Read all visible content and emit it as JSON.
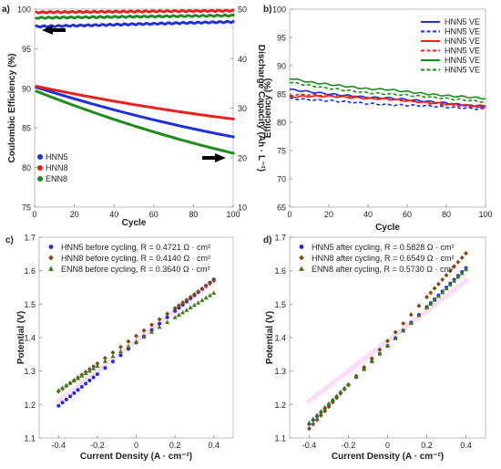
{
  "chart_data": [
    {
      "panel": "a)",
      "type": "scatter",
      "xlabel": "Cycle",
      "ylabel": "Coulombic Efficiency (%)",
      "y2label": "Discharge Capacity (Ah · L⁻¹)",
      "xlim": [
        0,
        100
      ],
      "ylim": [
        75,
        100
      ],
      "y2lim": [
        10,
        50
      ],
      "xticks": [
        "0",
        "20",
        "40",
        "60",
        "80",
        "100"
      ],
      "yticks": [
        "75",
        "80",
        "85",
        "90",
        "95",
        "100"
      ],
      "y2ticks": [
        "10",
        "20",
        "30",
        "40",
        "50"
      ],
      "legend_position": "lower-left",
      "legend": [
        "HNN5",
        "HNN8",
        "ENN8"
      ],
      "colors": [
        "#1f2fd0",
        "#e82020",
        "#1e8a1e"
      ],
      "series": [
        {
          "name": "HNN5",
          "axis": "left",
          "x_start": 1,
          "x_end": 100,
          "y_start": 97.8,
          "y_end": 98.4
        },
        {
          "name": "HNN8",
          "axis": "left",
          "x_start": 1,
          "x_end": 100,
          "y_start": 99.6,
          "y_end": 99.8
        },
        {
          "name": "ENN8",
          "axis": "left",
          "x_start": 1,
          "x_end": 100,
          "y_start": 98.9,
          "y_end": 99.2
        },
        {
          "name": "HNN5",
          "axis": "right",
          "x_start": 1,
          "x_end": 100,
          "y_start": 34.2,
          "y_end": 24.2
        },
        {
          "name": "HNN8",
          "axis": "right",
          "x_start": 1,
          "x_end": 100,
          "y_start": 34.4,
          "y_end": 27.8
        },
        {
          "name": "ENN8",
          "axis": "right",
          "x_start": 1,
          "x_end": 100,
          "y_start": 33.4,
          "y_end": 20.9
        }
      ],
      "arrows": [
        "left-axis",
        "right-axis"
      ]
    },
    {
      "panel": "b)",
      "type": "line",
      "xlabel": "Cycle",
      "ylabel": "Efficiency (%)",
      "xlim": [
        0,
        100
      ],
      "ylim": [
        65,
        100
      ],
      "xticks": [
        "0",
        "20",
        "40",
        "60",
        "80",
        "100"
      ],
      "yticks": [
        "65",
        "70",
        "75",
        "80",
        "85",
        "90",
        "95",
        "100"
      ],
      "legend_position": "top-right",
      "legend": [
        "HNN5 VE",
        "HNN5 VE",
        "HNN5 VE",
        "HNN5 VE",
        "HNN5 VE",
        "HNN5 VE"
      ],
      "series": [
        {
          "name": "HNN5 VE",
          "color": "#1f2fd0",
          "dash": false,
          "x": [
            0,
            10,
            20,
            30,
            40,
            50,
            60,
            70,
            80,
            90,
            100
          ],
          "y": [
            85.8,
            85.4,
            85.0,
            84.7,
            84.4,
            84.3,
            84.0,
            83.7,
            83.4,
            83.0,
            82.7
          ]
        },
        {
          "name": "HNN5 VE",
          "color": "#1f2fd0",
          "dash": true,
          "x": [
            0,
            10,
            20,
            30,
            40,
            50,
            60,
            70,
            80,
            90,
            100
          ],
          "y": [
            84.2,
            84.0,
            83.8,
            83.6,
            83.3,
            83.1,
            83.0,
            82.9,
            82.7,
            82.5,
            82.3
          ]
        },
        {
          "name": "HNN5 VE",
          "color": "#e82020",
          "dash": false,
          "x": [
            0,
            10,
            20,
            30,
            40,
            50,
            60,
            70,
            80,
            90,
            100
          ],
          "y": [
            84.5,
            84.6,
            84.6,
            84.4,
            84.2,
            84.1,
            83.8,
            83.5,
            83.3,
            83.0,
            82.9
          ]
        },
        {
          "name": "HNN5 VE",
          "color": "#e82020",
          "dash": true,
          "x": [
            0,
            10,
            20,
            30,
            40,
            50,
            60,
            70,
            80,
            90,
            100
          ],
          "y": [
            84.8,
            84.9,
            84.8,
            84.6,
            84.3,
            84.1,
            83.8,
            83.4,
            83.1,
            82.9,
            82.6
          ]
        },
        {
          "name": "HNN5 VE",
          "color": "#1e8a1e",
          "dash": false,
          "x": [
            0,
            10,
            20,
            30,
            40,
            50,
            60,
            70,
            80,
            90,
            100
          ],
          "y": [
            87.8,
            87.1,
            86.7,
            86.3,
            85.9,
            85.8,
            85.4,
            85.0,
            84.7,
            84.5,
            84.2
          ]
        },
        {
          "name": "HNN5 VE",
          "color": "#1e8a1e",
          "dash": true,
          "x": [
            0,
            10,
            20,
            30,
            40,
            50,
            60,
            70,
            80,
            90,
            100
          ],
          "y": [
            87.1,
            86.5,
            86.0,
            85.6,
            85.2,
            85.0,
            84.8,
            84.5,
            84.2,
            83.9,
            83.6
          ]
        }
      ]
    },
    {
      "panel": "c)",
      "type": "scatter",
      "xlabel": "Current Density (A · cm⁻²)",
      "ylabel": "Potential (V)",
      "xlim": [
        -0.5,
        0.5
      ],
      "ylim": [
        1.1,
        1.7
      ],
      "xticks": [
        "-0.4",
        "-0.2",
        "0",
        "0.2",
        "0.4"
      ],
      "yticks": [
        "1.1",
        "1.2",
        "1.3",
        "1.4",
        "1.5",
        "1.6",
        "1.7"
      ],
      "legend_position": "top-left",
      "series": [
        {
          "name": "HNN5 before cycling, R = 0.4721 Ω · cm²",
          "marker": "circle",
          "color": "#1f2fd0",
          "intercept": 1.385,
          "slope": 0.4721,
          "x_min": -0.4,
          "x_max": 0.4
        },
        {
          "name": "HNN8 before cycling, R = 0.4140 Ω · cm²",
          "marker": "diamond",
          "color": "#7a4a16",
          "intercept": 1.405,
          "slope": 0.414,
          "x_min": -0.4,
          "x_max": 0.4
        },
        {
          "name": "ENN8 before cycling, R = 0.3640 Ω · cm²",
          "marker": "triangle",
          "color": "#3f7a1c",
          "intercept": 1.388,
          "slope": 0.364,
          "x_min": -0.4,
          "x_max": 0.4
        }
      ]
    },
    {
      "panel": "d)",
      "type": "scatter",
      "xlabel": "Current Density (A · cm⁻²)",
      "ylabel": "Potential (V)",
      "xlim": [
        -0.5,
        0.5
      ],
      "ylim": [
        1.1,
        1.7
      ],
      "xticks": [
        "-0.4",
        "-0.2",
        "0",
        "0.2",
        "0.4"
      ],
      "yticks": [
        "1.1",
        "1.2",
        "1.3",
        "1.4",
        "1.5",
        "1.6",
        "1.7"
      ],
      "legend_position": "top-left",
      "series": [
        {
          "name": "HNN5 after cycling, R = 0.5828 Ω · cm²",
          "marker": "circle",
          "color": "#1f2fd0",
          "intercept": 1.375,
          "slope": 0.5828,
          "x_min": -0.4,
          "x_max": 0.4
        },
        {
          "name": "HNN8 after cycling, R = 0.6549 Ω · cm²",
          "marker": "diamond",
          "color": "#7a4a16",
          "intercept": 1.39,
          "slope": 0.6549,
          "x_min": -0.4,
          "x_max": 0.4
        },
        {
          "name": "ENN8 after cycling, R = 0.5730 Ω · cm²",
          "marker": "triangle",
          "color": "#3f7a1c",
          "intercept": 1.375,
          "slope": 0.573,
          "x_min": -0.4,
          "x_max": 0.4
        }
      ]
    }
  ]
}
